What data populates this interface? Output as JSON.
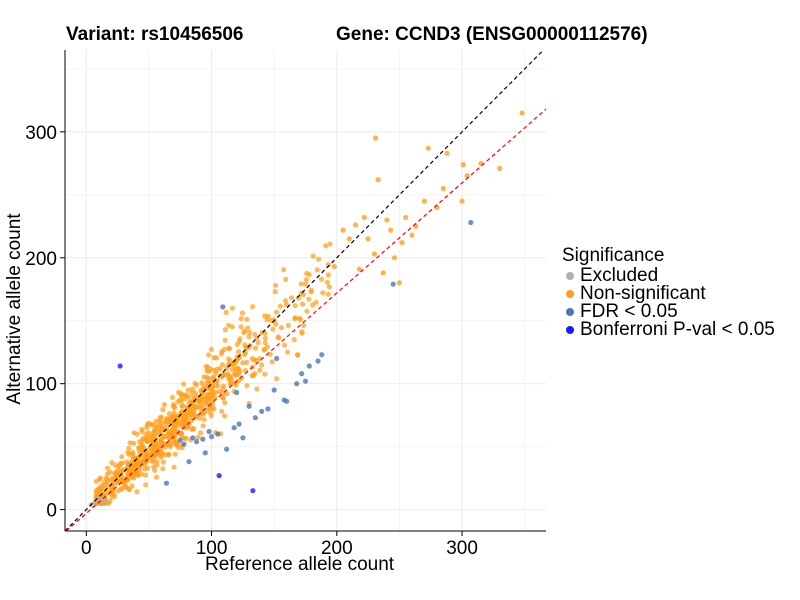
{
  "chart_data": {
    "type": "scatter",
    "title_left": "Variant: rs10456506",
    "title_right": "Gene: CCND3 (ENSG00000112576)",
    "xlabel": "Reference allele count",
    "ylabel": "Alternative allele count",
    "xlim": [
      -17,
      367
    ],
    "ylim": [
      -17,
      365
    ],
    "xticks": [
      0,
      100,
      200,
      300
    ],
    "yticks": [
      0,
      100,
      200,
      300
    ],
    "grid": true,
    "legend": {
      "title": "Significance",
      "placement": "right",
      "entries": [
        {
          "label": "Excluded",
          "color": "#b0b0b0"
        },
        {
          "label": "Non-significant",
          "color": "#ff9f1c"
        },
        {
          "label": "FDR < 0.05",
          "color": "#4a78b5"
        },
        {
          "label": "Bonferroni P-val < 0.05",
          "color": "#1a1aff"
        }
      ]
    },
    "reference_lines": [
      {
        "name": "identity",
        "slope": 1.0,
        "intercept": 0,
        "color": "#000000",
        "style": "dashed"
      },
      {
        "name": "fit",
        "slope": 0.875,
        "intercept": -3,
        "color": "#ff0000",
        "style": "dashed"
      }
    ],
    "point_generator": {
      "series": "Non-significant",
      "count": 760,
      "x_min": 8,
      "x_max": 195,
      "slope": 0.95,
      "noise_sd": 13,
      "seed": 7
    },
    "series": [
      {
        "name": "Excluded",
        "color": "#b0b0b0",
        "x": [
          4,
          7,
          10,
          12,
          15
        ],
        "y": [
          4,
          6,
          9,
          8,
          6
        ]
      },
      {
        "name": "Non-significant",
        "color": "#ff9f1c",
        "x": [
          231,
          233,
          273,
          288,
          301,
          315,
          330,
          348,
          300,
          304,
          285,
          263,
          255,
          260,
          240,
          250,
          222,
          210,
          205,
          225,
          243,
          237,
          270,
          280,
          198,
          215,
          246,
          218,
          230,
          252
        ],
        "y": [
          295,
          262,
          287,
          283,
          274,
          275,
          271,
          315,
          245,
          265,
          255,
          225,
          232,
          218,
          230,
          180,
          232,
          215,
          222,
          215,
          222,
          188,
          245,
          240,
          193,
          226,
          200,
          191,
          203,
          212
        ]
      },
      {
        "name": "FDR < 0.05",
        "color": "#4a78b5",
        "x": [
          109,
          75,
          78,
          85,
          88,
          93,
          98,
          100,
          105,
          112,
          118,
          122,
          130,
          135,
          140,
          145,
          150,
          158,
          160,
          168,
          172,
          175,
          178,
          185,
          188,
          64,
          82,
          95,
          245,
          307,
          125,
          152,
          120
        ],
        "y": [
          161,
          55,
          52,
          57,
          54,
          56,
          62,
          58,
          60,
          48,
          65,
          68,
          82,
          73,
          78,
          80,
          95,
          87,
          86,
          100,
          108,
          102,
          114,
          118,
          123,
          21,
          38,
          45,
          179,
          228,
          57,
          120,
          93
        ]
      },
      {
        "name": "Bonferroni P-val < 0.05",
        "color": "#1a1aff",
        "x": [
          27,
          106,
          133
        ],
        "y": [
          114,
          27,
          15
        ]
      }
    ]
  }
}
